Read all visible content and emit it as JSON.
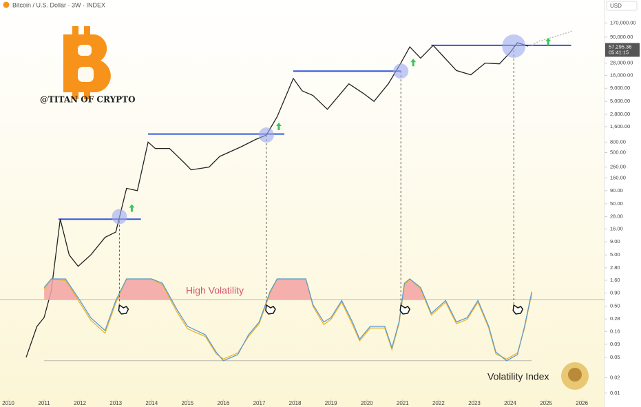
{
  "chart_data": [
    {
      "type": "line",
      "title": "Bitcoin / U.S. Dollar · 3W · INDEX",
      "currency": "USD",
      "watermark": "@TITAN OF CRYPTO",
      "log_scale": true,
      "grid": false,
      "xlim": [
        2009.77,
        2026.63
      ],
      "xticks": [
        2010,
        2011,
        2012,
        2013,
        2014,
        2015,
        2016,
        2017,
        2018,
        2019,
        2020,
        2021,
        2022,
        2023,
        2024,
        2025,
        2026
      ],
      "ylim": [
        0.008,
        300000
      ],
      "yticks": [
        {
          "value": 170000,
          "label": "170,000.00"
        },
        {
          "value": 90000,
          "label": "90,000.00"
        },
        {
          "value": 28000,
          "label": "28,000.00"
        },
        {
          "value": 16000,
          "label": "16,000.00"
        },
        {
          "value": 9000,
          "label": "9,000.00"
        },
        {
          "value": 5000,
          "label": "5,000.00"
        },
        {
          "value": 2800,
          "label": "2,800.00"
        },
        {
          "value": 1600,
          "label": "1,600.00"
        },
        {
          "value": 800,
          "label": "800.00"
        },
        {
          "value": 500,
          "label": "500.00"
        },
        {
          "value": 260,
          "label": "260.00"
        },
        {
          "value": 160,
          "label": "160.00"
        },
        {
          "value": 90,
          "label": "90.00"
        },
        {
          "value": 50,
          "label": "50.00"
        },
        {
          "value": 28,
          "label": "28.00"
        },
        {
          "value": 16,
          "label": "16.00"
        },
        {
          "value": 9,
          "label": "9.00"
        },
        {
          "value": 5,
          "label": "5.00"
        },
        {
          "value": 2.8,
          "label": "2.80"
        },
        {
          "value": 1.6,
          "label": "1.60"
        },
        {
          "value": 0.9,
          "label": "0.90"
        },
        {
          "value": 0.5,
          "label": "0.50"
        },
        0.28,
        0.16,
        0.09,
        0.05,
        0.02,
        0.01
      ],
      "series": [
        {
          "color": "#222222",
          "x": [
            2010.5,
            2010.8,
            2011.0,
            2011.2,
            2011.45,
            2011.7,
            2011.95,
            2012.3,
            2012.7,
            2013.0,
            2013.3,
            2013.6,
            2013.9,
            2014.1,
            2014.5,
            2014.9,
            2015.1,
            2015.6,
            2015.9,
            2016.5,
            2016.9,
            2017.2,
            2017.5,
            2017.95,
            2018.2,
            2018.5,
            2018.9,
            2019.5,
            2019.9,
            2020.2,
            2020.6,
            2020.95,
            2021.2,
            2021.5,
            2021.85,
            2022.1,
            2022.5,
            2022.9,
            2023.3,
            2023.7,
            2024.0,
            2024.2,
            2024.5
          ],
          "values": [
            0.05,
            0.2,
            0.3,
            1,
            25,
            5,
            3,
            5,
            11,
            14,
            100,
            90,
            800,
            600,
            600,
            320,
            230,
            260,
            420,
            650,
            900,
            1100,
            2500,
            14000,
            8000,
            6500,
            3500,
            11000,
            7200,
            5000,
            11000,
            28000,
            58000,
            35000,
            62000,
            40000,
            20000,
            16500,
            28000,
            27000,
            45000,
            70000,
            60000
          ]
        },
        {
          "color": "#bbbbbb",
          "style": "dotted",
          "x": [
            2024.6,
            2024.8,
            2025.2,
            2025.6,
            2025.75
          ],
          "values": [
            62000,
            75000,
            90000,
            110000,
            120000
          ]
        }
      ],
      "last_price": {
        "value": 57295.36,
        "label": "57,295.36",
        "countdown": "05:41:15"
      },
      "resistance_color": "#3355dd",
      "resistance_levels": [
        {
          "value": 25,
          "x": [
            2011.4,
            2013.7
          ]
        },
        {
          "value": 1150,
          "x": [
            2013.9,
            2017.7
          ]
        },
        {
          "value": 19500,
          "x": [
            2017.95,
            2020.95
          ]
        },
        {
          "value": 62000,
          "x": [
            2021.8,
            2025.7
          ]
        }
      ],
      "breakout_color": "#9aa8f0",
      "breakouts": [
        {
          "x": 2013.1,
          "value": 28
        },
        {
          "x": 2017.2,
          "value": 1100
        },
        {
          "x": 2020.95,
          "value": 19500
        },
        {
          "x": 2024.1,
          "value": 60000
        }
      ]
    },
    {
      "type": "line",
      "title": "Volatility Index",
      "annotation": "High Volatility",
      "xlim": [
        2009.77,
        2026.63
      ],
      "ylim": [
        0,
        1
      ],
      "reference_lines": [
        0.76,
        0.05
      ],
      "highlight_color": "#f3a3a3",
      "x": [
        2011.0,
        2011.2,
        2011.6,
        2012.0,
        2012.3,
        2012.7,
        2013.0,
        2013.3,
        2014.0,
        2014.3,
        2014.7,
        2015.0,
        2015.5,
        2015.8,
        2016.0,
        2016.4,
        2016.7,
        2017.0,
        2017.3,
        2017.5,
        2018.3,
        2018.5,
        2018.8,
        2019.0,
        2019.3,
        2019.6,
        2019.8,
        2020.1,
        2020.5,
        2020.7,
        2020.9,
        2021.05,
        2021.2,
        2021.5,
        2021.8,
        2022.2,
        2022.5,
        2022.8,
        2023.1,
        2023.4,
        2023.6,
        2023.9,
        2024.2,
        2024.4,
        2024.6
      ],
      "series": [
        {
          "color": "#5b9bd5",
          "values": [
            0.9,
            1,
            1,
            0.75,
            0.55,
            0.4,
            0.75,
            1,
            1,
            0.95,
            0.65,
            0.45,
            0.35,
            0.15,
            0.05,
            0.12,
            0.35,
            0.5,
            0.85,
            1,
            1,
            0.7,
            0.5,
            0.55,
            0.75,
            0.5,
            0.3,
            0.45,
            0.45,
            0.2,
            0.5,
            0.95,
            1,
            0.9,
            0.6,
            0.75,
            0.5,
            0.55,
            0.75,
            0.45,
            0.15,
            0.05,
            0.12,
            0.45,
            0.85
          ]
        },
        {
          "color": "#f0b429",
          "values": [
            0.88,
            1,
            0.98,
            0.72,
            0.52,
            0.37,
            0.72,
            1,
            1,
            0.93,
            0.62,
            0.42,
            0.33,
            0.13,
            0.07,
            0.14,
            0.33,
            0.48,
            0.83,
            1,
            1,
            0.68,
            0.47,
            0.53,
            0.73,
            0.47,
            0.28,
            0.43,
            0.43,
            0.18,
            0.48,
            0.93,
            1,
            0.88,
            0.58,
            0.73,
            0.48,
            0.53,
            0.73,
            0.43,
            0.13,
            0.07,
            0.14,
            0.43,
            0.83
          ]
        }
      ]
    }
  ]
}
